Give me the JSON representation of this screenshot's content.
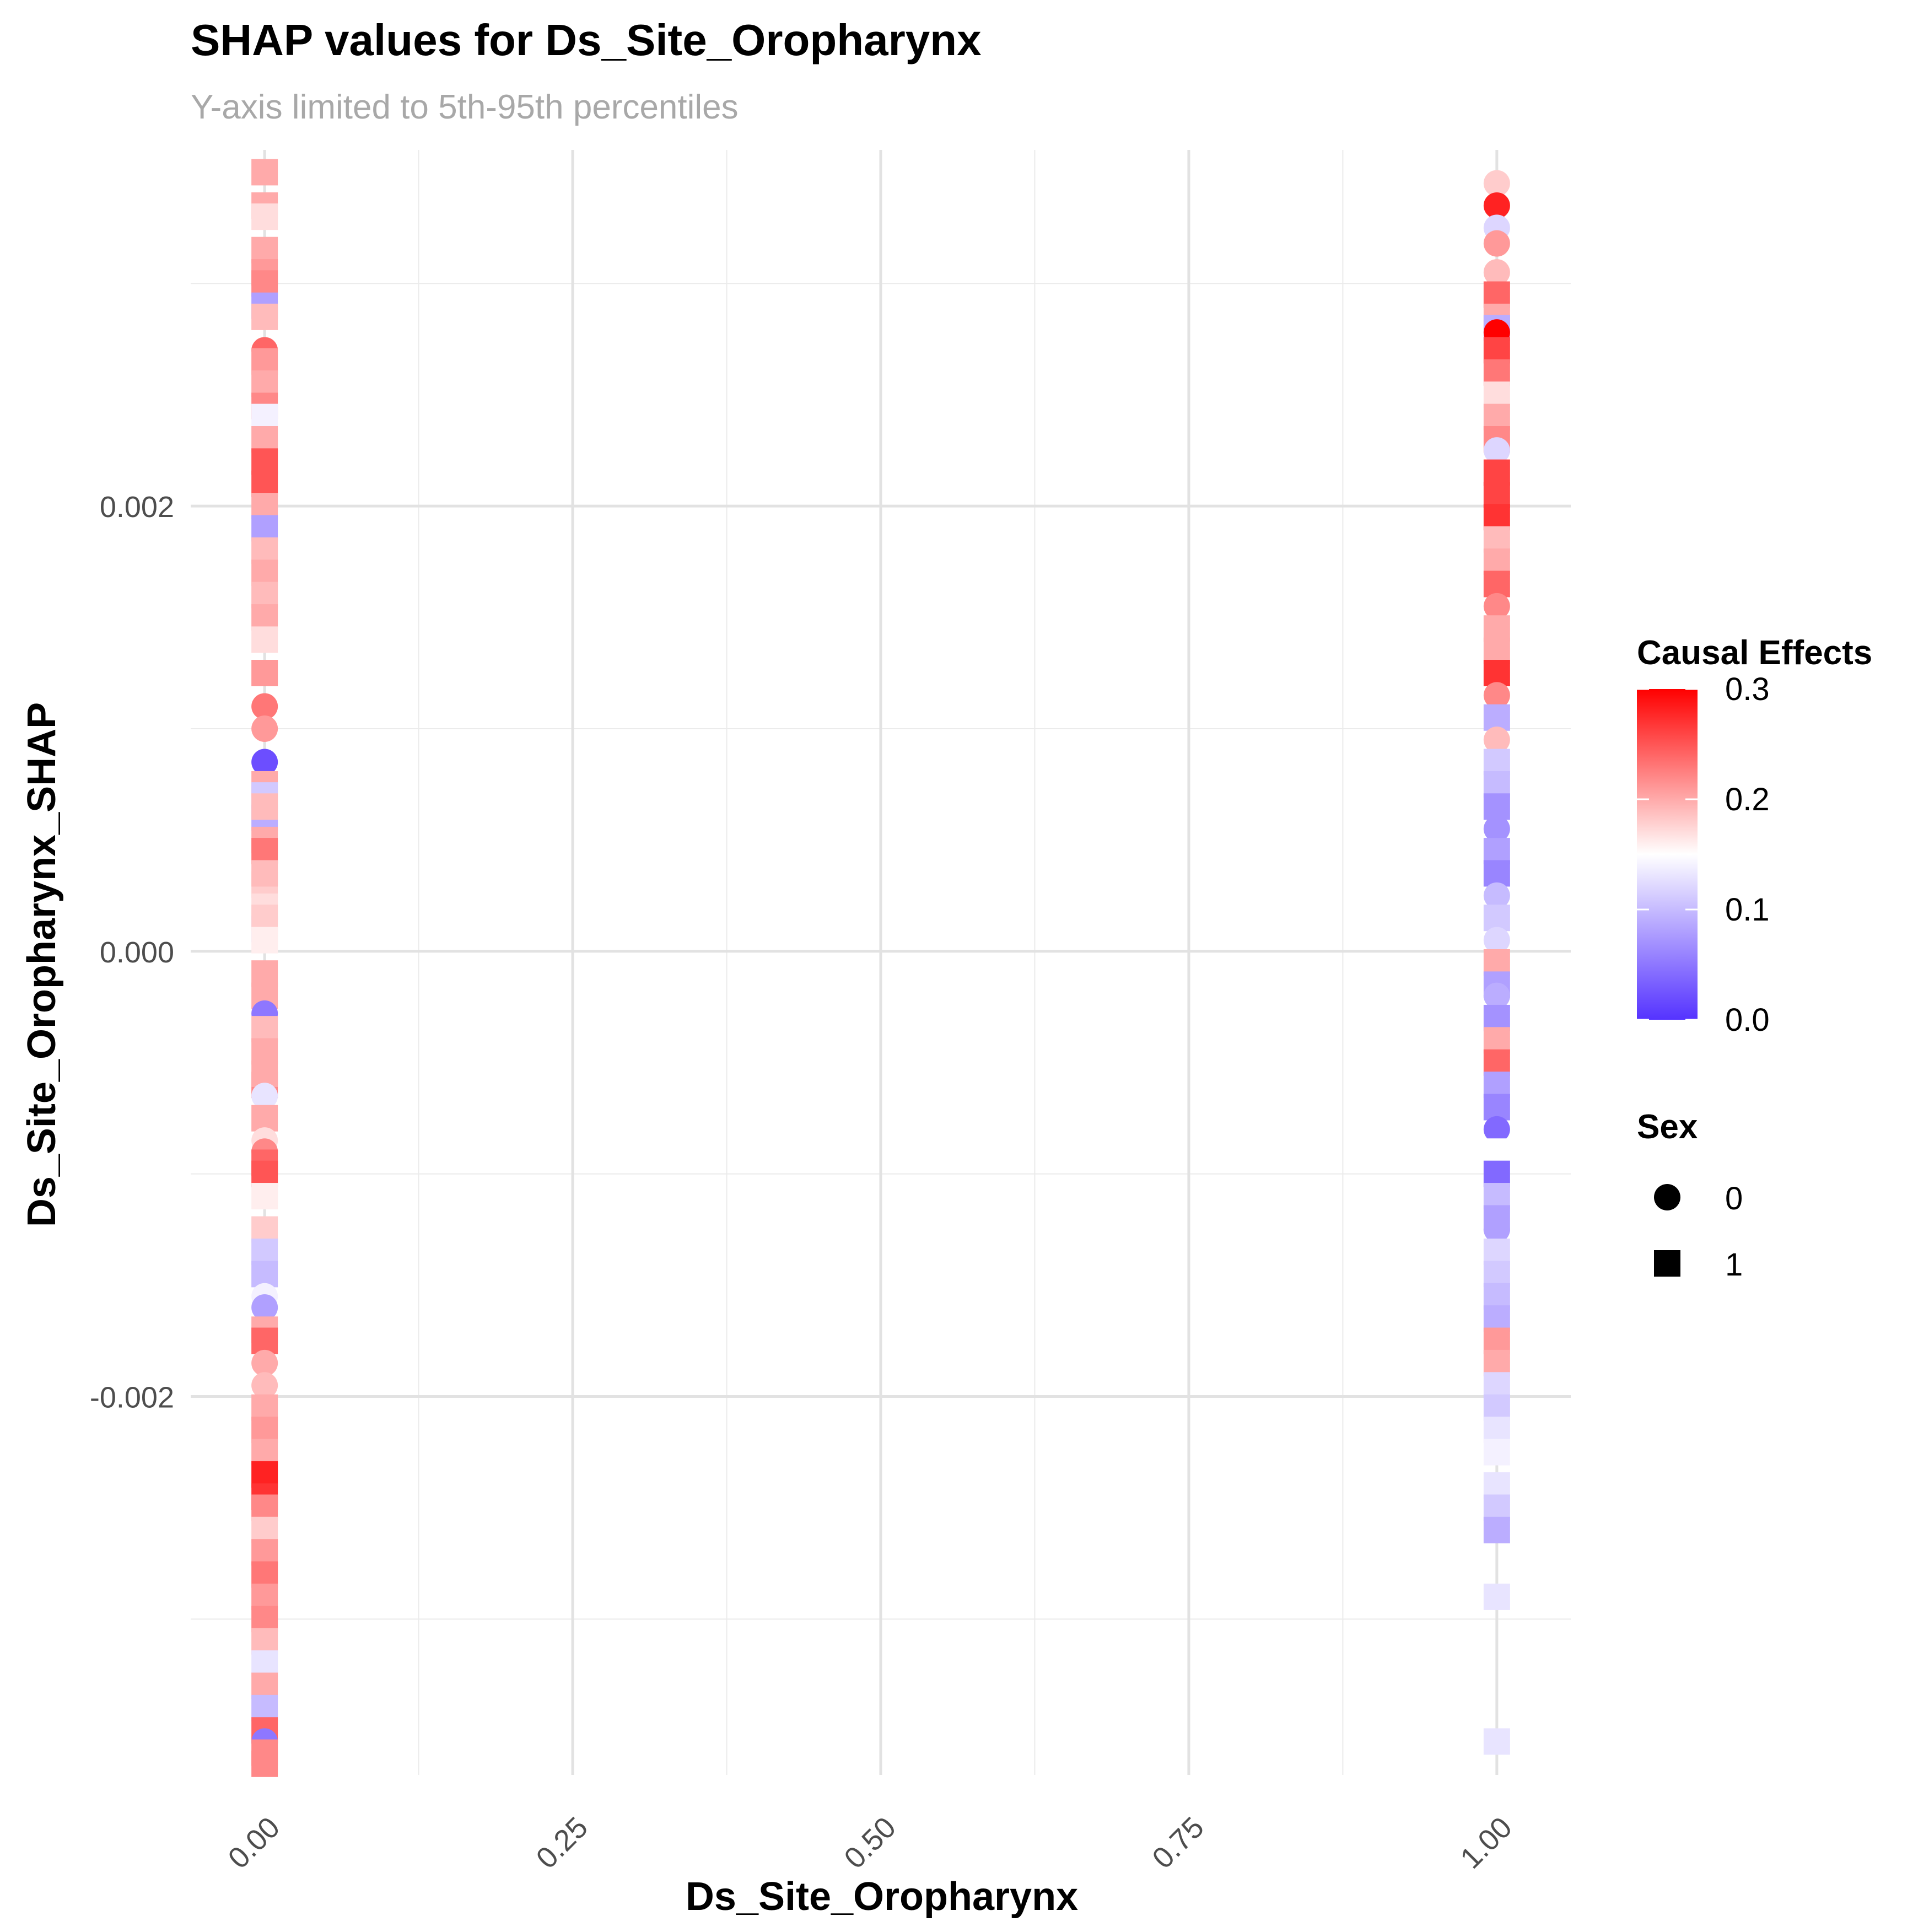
{
  "chart_data": {
    "type": "scatter",
    "title": "SHAP values for Ds_Site_Oropharynx",
    "subtitle": "Y-axis limited to 5th-95th percentiles",
    "xlabel": "Ds_Site_Oropharynx",
    "ylabel": "Ds_Site_Oropharynx_SHAP",
    "xlim": [
      -0.06,
      1.06
    ],
    "ylim": [
      -0.0037,
      0.0036
    ],
    "x_ticks": [
      0,
      0.25,
      0.5,
      0.75,
      1
    ],
    "x_tick_labels": [
      "0.00",
      "0.25",
      "0.50",
      "0.75",
      "1.00"
    ],
    "y_ticks": [
      -0.002,
      0,
      0.002
    ],
    "y_tick_labels": [
      "-0.002",
      "0.000",
      "0.002"
    ],
    "grid": true,
    "color_scale": {
      "title": "Causal Effects",
      "low_color": "#5533FF",
      "mid_color": "#FFFFFF",
      "high_color": "#FF0000",
      "midpoint": 0.15,
      "limits": [
        0,
        0.3
      ],
      "breaks": [
        0,
        0.1,
        0.2,
        0.3
      ],
      "break_labels": [
        "0.0",
        "0.1",
        "0.2",
        "0.3"
      ]
    },
    "shape_legend": {
      "title": "Sex",
      "items": [
        {
          "label": "0",
          "shape": "circle"
        },
        {
          "label": "1",
          "shape": "square"
        }
      ]
    },
    "legend_position": "right",
    "series": [
      {
        "x": 0,
        "points": [
          {
            "y": 0.0035,
            "c": 0.2,
            "s": 1
          },
          {
            "y": 0.00335,
            "c": 0.2,
            "s": 1
          },
          {
            "y": 0.0033,
            "c": 0.17,
            "s": 1
          },
          {
            "y": 0.00315,
            "c": 0.2,
            "s": 1
          },
          {
            "y": 0.00305,
            "c": 0.21,
            "s": 1
          },
          {
            "y": 0.003,
            "c": 0.22,
            "s": 1
          },
          {
            "y": 0.0029,
            "c": 0.08,
            "s": 1
          },
          {
            "y": 0.00285,
            "c": 0.19,
            "s": 1
          },
          {
            "y": 0.0027,
            "c": 0.24,
            "s": 0
          },
          {
            "y": 0.00265,
            "c": 0.21,
            "s": 1
          },
          {
            "y": 0.00255,
            "c": 0.2,
            "s": 1
          },
          {
            "y": 0.00245,
            "c": 0.22,
            "s": 1
          },
          {
            "y": 0.0024,
            "c": 0.14,
            "s": 1
          },
          {
            "y": 0.0023,
            "c": 0.2,
            "s": 1
          },
          {
            "y": 0.0022,
            "c": 0.25,
            "s": 1
          },
          {
            "y": 0.0021,
            "c": 0.25,
            "s": 1
          },
          {
            "y": 0.002,
            "c": 0.2,
            "s": 1
          },
          {
            "y": 0.0019,
            "c": 0.08,
            "s": 1
          },
          {
            "y": 0.0018,
            "c": 0.19,
            "s": 1
          },
          {
            "y": 0.0017,
            "c": 0.2,
            "s": 1
          },
          {
            "y": 0.0016,
            "c": 0.19,
            "s": 1
          },
          {
            "y": 0.0015,
            "c": 0.2,
            "s": 1
          },
          {
            "y": 0.0014,
            "c": 0.17,
            "s": 1
          },
          {
            "y": 0.00125,
            "c": 0.21,
            "s": 1
          },
          {
            "y": 0.0011,
            "c": 0.23,
            "s": 0
          },
          {
            "y": 0.001,
            "c": 0.21,
            "s": 0
          },
          {
            "y": 0.00085,
            "c": 0.02,
            "s": 0
          },
          {
            "y": 0.00075,
            "c": 0.2,
            "s": 1
          },
          {
            "y": 0.0007,
            "c": 0.11,
            "s": 1
          },
          {
            "y": 0.0006,
            "c": 0.09,
            "s": 1
          },
          {
            "y": 0.0005,
            "c": 0.2,
            "s": 1
          },
          {
            "y": 0.0004,
            "c": 0.22,
            "s": 0
          },
          {
            "y": 0.0003,
            "c": 0.18,
            "s": 1
          },
          {
            "y": 0.0002,
            "c": 0.17,
            "s": 1
          },
          {
            "y": 0.0001,
            "c": 0.11,
            "s": 1
          },
          {
            "y": -0.0001,
            "c": 0.2,
            "s": 1
          },
          {
            "y": 0.00065,
            "c": 0.19,
            "s": 1
          },
          {
            "y": 0.00045,
            "c": 0.23,
            "s": 1
          },
          {
            "y": 0.00035,
            "c": 0.19,
            "s": 1
          },
          {
            "y": 0.00015,
            "c": 0.18,
            "s": 1
          },
          {
            "y": -0.0003,
            "c": 0.16,
            "s": 1
          },
          {
            "y": -0.0006,
            "c": 0.22,
            "s": 1
          },
          {
            "y": 5e-05,
            "c": 0.16,
            "s": 1
          },
          {
            "y": -0.0002,
            "c": 0.2,
            "s": 1
          },
          {
            "y": -0.00028,
            "c": 0.05,
            "s": 0
          },
          {
            "y": -0.00035,
            "c": 0.19,
            "s": 1
          },
          {
            "y": -0.00045,
            "c": 0.2,
            "s": 1
          },
          {
            "y": -0.00055,
            "c": 0.2,
            "s": 1
          },
          {
            "y": -0.00065,
            "c": 0.13,
            "s": 0
          },
          {
            "y": -0.00075,
            "c": 0.2,
            "s": 1
          },
          {
            "y": -0.00085,
            "c": 0.17,
            "s": 0
          },
          {
            "y": -0.0009,
            "c": 0.22,
            "s": 0
          },
          {
            "y": -0.00095,
            "c": 0.24,
            "s": 1
          },
          {
            "y": -0.001,
            "c": 0.25,
            "s": 1
          },
          {
            "y": -0.0011,
            "c": 0.16,
            "s": 1
          },
          {
            "y": -0.00125,
            "c": 0.18,
            "s": 1
          },
          {
            "y": -0.00135,
            "c": 0.11,
            "s": 1
          },
          {
            "y": -0.00145,
            "c": 0.1,
            "s": 1
          },
          {
            "y": -0.00155,
            "c": 0.14,
            "s": 0
          },
          {
            "y": -0.0016,
            "c": 0.08,
            "s": 0
          },
          {
            "y": -0.0017,
            "c": 0.2,
            "s": 1
          },
          {
            "y": -0.00175,
            "c": 0.24,
            "s": 1
          },
          {
            "y": -0.00185,
            "c": 0.2,
            "s": 0
          },
          {
            "y": -0.00195,
            "c": 0.19,
            "s": 0
          },
          {
            "y": -0.00205,
            "c": 0.2,
            "s": 1
          },
          {
            "y": -0.00215,
            "c": 0.21,
            "s": 1
          },
          {
            "y": -0.00225,
            "c": 0.2,
            "s": 1
          },
          {
            "y": -0.00235,
            "c": 0.28,
            "s": 1
          },
          {
            "y": -0.00245,
            "c": 0.27,
            "s": 1
          },
          {
            "y": -0.0025,
            "c": 0.22,
            "s": 1
          },
          {
            "y": -0.0026,
            "c": 0.18,
            "s": 1
          },
          {
            "y": -0.0027,
            "c": 0.21,
            "s": 1
          },
          {
            "y": -0.0028,
            "c": 0.23,
            "s": 1
          },
          {
            "y": -0.0029,
            "c": 0.21,
            "s": 1
          },
          {
            "y": -0.003,
            "c": 0.22,
            "s": 1
          },
          {
            "y": -0.0031,
            "c": 0.19,
            "s": 1
          },
          {
            "y": -0.0032,
            "c": 0.13,
            "s": 1
          },
          {
            "y": -0.0033,
            "c": 0.2,
            "s": 1
          },
          {
            "y": -0.0034,
            "c": 0.1,
            "s": 1
          },
          {
            "y": -0.0035,
            "c": 0.24,
            "s": 1
          },
          {
            "y": -0.00355,
            "c": 0.05,
            "s": 0
          },
          {
            "y": -0.0036,
            "c": 0.22,
            "s": 1
          },
          {
            "y": -0.00365,
            "c": 0.22,
            "s": 1
          }
        ]
      },
      {
        "x": 1,
        "points": [
          {
            "y": 0.00345,
            "c": 0.18,
            "s": 0
          },
          {
            "y": 0.00335,
            "c": 0.28,
            "s": 0
          },
          {
            "y": 0.00325,
            "c": 0.12,
            "s": 0
          },
          {
            "y": 0.00318,
            "c": 0.21,
            "s": 0
          },
          {
            "y": 0.00305,
            "c": 0.19,
            "s": 0
          },
          {
            "y": 0.00295,
            "c": 0.24,
            "s": 1
          },
          {
            "y": 0.00285,
            "c": 0.2,
            "s": 1
          },
          {
            "y": 0.0028,
            "c": 0.09,
            "s": 1
          },
          {
            "y": 0.00278,
            "c": 0.3,
            "s": 0
          },
          {
            "y": 0.0027,
            "c": 0.26,
            "s": 1
          },
          {
            "y": 0.0026,
            "c": 0.23,
            "s": 1
          },
          {
            "y": 0.0025,
            "c": 0.17,
            "s": 1
          },
          {
            "y": 0.0024,
            "c": 0.2,
            "s": 1
          },
          {
            "y": 0.0023,
            "c": 0.22,
            "s": 1
          },
          {
            "y": 0.00225,
            "c": 0.12,
            "s": 0
          },
          {
            "y": 0.00215,
            "c": 0.26,
            "s": 1
          },
          {
            "y": 0.00205,
            "c": 0.26,
            "s": 1
          },
          {
            "y": 0.00195,
            "c": 0.27,
            "s": 1
          },
          {
            "y": 0.00185,
            "c": 0.19,
            "s": 1
          },
          {
            "y": 0.00175,
            "c": 0.2,
            "s": 1
          },
          {
            "y": 0.00165,
            "c": 0.24,
            "s": 1
          },
          {
            "y": 0.00155,
            "c": 0.22,
            "s": 0
          },
          {
            "y": 0.00145,
            "c": 0.2,
            "s": 1
          },
          {
            "y": 0.00135,
            "c": 0.2,
            "s": 1
          },
          {
            "y": 0.00125,
            "c": 0.27,
            "s": 1
          },
          {
            "y": 0.00115,
            "c": 0.22,
            "s": 0
          },
          {
            "y": 0.00105,
            "c": 0.09,
            "s": 1
          },
          {
            "y": 0.00095,
            "c": 0.19,
            "s": 0
          },
          {
            "y": 0.00085,
            "c": 0.11,
            "s": 1
          },
          {
            "y": 0.00075,
            "c": 0.1,
            "s": 1
          },
          {
            "y": 0.00065,
            "c": 0.07,
            "s": 1
          },
          {
            "y": 0.00055,
            "c": 0.07,
            "s": 0
          },
          {
            "y": 0.00045,
            "c": 0.08,
            "s": 1
          },
          {
            "y": 0.00035,
            "c": 0.06,
            "s": 1
          },
          {
            "y": 0.00025,
            "c": 0.1,
            "s": 0
          },
          {
            "y": 0.00015,
            "c": 0.11,
            "s": 1
          },
          {
            "y": 5e-05,
            "c": 0.12,
            "s": 0
          },
          {
            "y": -5e-05,
            "c": 0.2,
            "s": 1
          },
          {
            "y": -0.00015,
            "c": 0.08,
            "s": 1
          },
          {
            "y": -0.0002,
            "c": 0.09,
            "s": 0
          },
          {
            "y": -0.0003,
            "c": 0.07,
            "s": 1
          },
          {
            "y": -0.0004,
            "c": 0.2,
            "s": 1
          },
          {
            "y": -0.0005,
            "c": 0.24,
            "s": 1
          },
          {
            "y": -0.0006,
            "c": 0.08,
            "s": 1
          },
          {
            "y": -0.0007,
            "c": 0.06,
            "s": 1
          },
          {
            "y": -0.0008,
            "c": 0.04,
            "s": 0
          },
          {
            "y": -0.0009,
            "c": 0.15,
            "s": 1
          },
          {
            "y": -0.001,
            "c": 0.04,
            "s": 1
          },
          {
            "y": -0.0011,
            "c": 0.1,
            "s": 1
          },
          {
            "y": -0.0012,
            "c": 0.08,
            "s": 1
          },
          {
            "y": -0.00125,
            "c": 0.08,
            "s": 0
          },
          {
            "y": -0.00135,
            "c": 0.12,
            "s": 1
          },
          {
            "y": -0.00145,
            "c": 0.11,
            "s": 1
          },
          {
            "y": -0.00155,
            "c": 0.1,
            "s": 1
          },
          {
            "y": -0.00165,
            "c": 0.09,
            "s": 1
          },
          {
            "y": -0.00175,
            "c": 0.21,
            "s": 1
          },
          {
            "y": -0.00185,
            "c": 0.2,
            "s": 1
          },
          {
            "y": -0.00195,
            "c": 0.12,
            "s": 1
          },
          {
            "y": -0.00205,
            "c": 0.11,
            "s": 1
          },
          {
            "y": -0.00215,
            "c": 0.13,
            "s": 1
          },
          {
            "y": -0.00225,
            "c": 0.14,
            "s": 1
          },
          {
            "y": -0.0024,
            "c": 0.13,
            "s": 1
          },
          {
            "y": -0.0025,
            "c": 0.11,
            "s": 1
          },
          {
            "y": -0.0026,
            "c": 0.09,
            "s": 1
          },
          {
            "y": -0.0029,
            "c": 0.13,
            "s": 1
          },
          {
            "y": -0.00355,
            "c": 0.13,
            "s": 1
          }
        ]
      }
    ]
  }
}
